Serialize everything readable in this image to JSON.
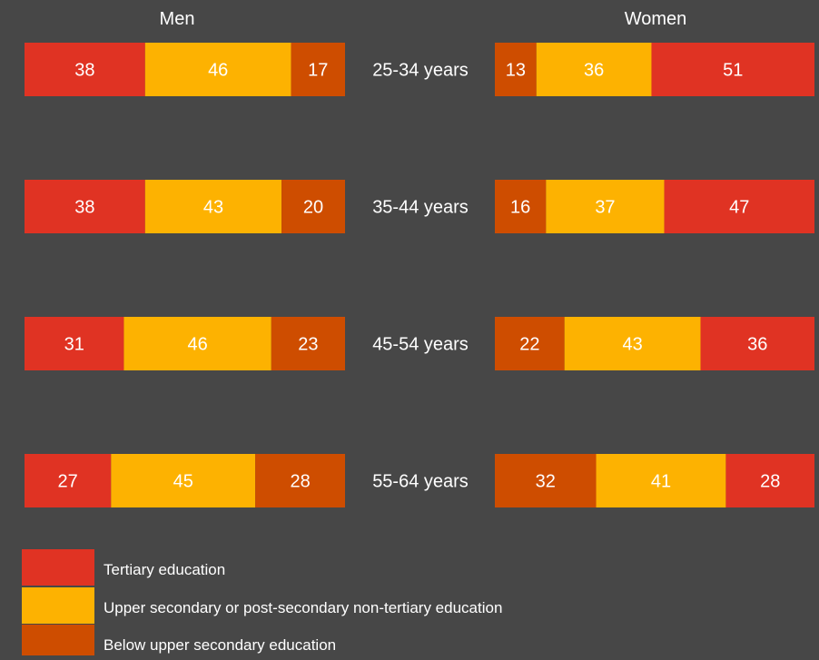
{
  "chart_data": {
    "type": "bar",
    "orientation": "horizontal",
    "stacked": true,
    "panels": [
      {
        "title": "Men",
        "segment_order": [
          "Tertiary education",
          "Upper secondary or post-secondary non-tertiary education",
          "Below upper secondary education"
        ]
      },
      {
        "title": "Women",
        "segment_order": [
          "Below upper secondary education",
          "Upper secondary or post-secondary non-tertiary education",
          "Tertiary education"
        ]
      }
    ],
    "categories": [
      "25-34 years",
      "35-44 years",
      "45-54 years",
      "55-64 years"
    ],
    "series": [
      {
        "name": "Tertiary education",
        "color": "#E03323",
        "men": [
          38,
          38,
          31,
          27
        ],
        "women": [
          51,
          47,
          36,
          28
        ]
      },
      {
        "name": "Upper secondary or post-secondary non-tertiary education",
        "color": "#FDB201",
        "men": [
          46,
          43,
          46,
          45
        ],
        "women": [
          36,
          37,
          43,
          41
        ]
      },
      {
        "name": "Below upper secondary education",
        "color": "#CE4D00",
        "men": [
          17,
          20,
          23,
          28
        ],
        "women": [
          13,
          16,
          22,
          32
        ]
      }
    ],
    "legend_position": "bottom-left",
    "grid": false
  }
}
